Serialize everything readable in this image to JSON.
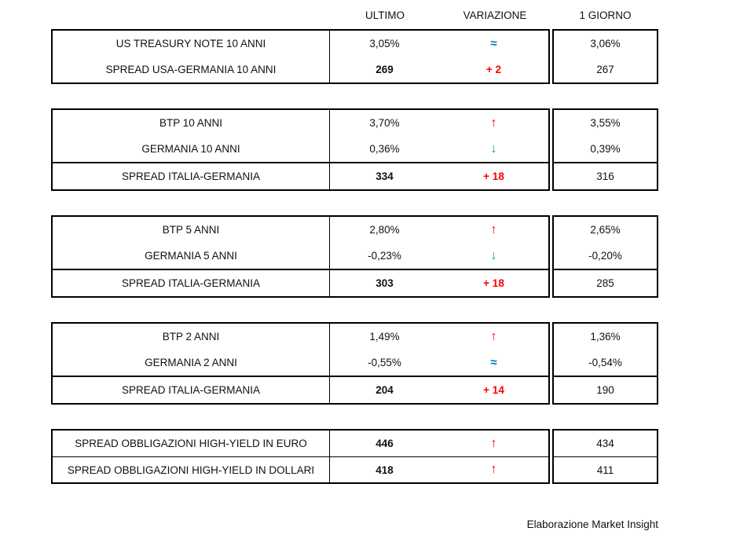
{
  "columns": {
    "ultimo": "ULTIMO",
    "variazione": "VARIAZIONE",
    "giorno": "1 GIORNO"
  },
  "footer": "Elaborazione Market Insight",
  "colors": {
    "up": "#ff0000",
    "down": "#00b050",
    "flat": "#0070c0",
    "positive_change": "#ff0000"
  },
  "chart_data": {
    "type": "table",
    "columns": [
      "",
      "ULTIMO",
      "VARIAZIONE",
      "1 GIORNO"
    ],
    "legend": {
      "up_arrow": "rise (red)",
      "down_arrow": "fall (green)",
      "approx": "unchanged (blue)"
    },
    "blocks": [
      {
        "name": "us-treasury-10y",
        "rows": [
          {
            "label": "US TREASURY NOTE 10 ANNI",
            "ultimo": "3,05%",
            "variazione": "≈",
            "trend": "flat",
            "giorno": "3,06%",
            "bold": false
          },
          {
            "label": "SPREAD USA-GERMANIA 10 ANNI",
            "ultimo": "269",
            "variazione": "+ 2",
            "trend": "positive",
            "giorno": "267",
            "bold": true
          }
        ]
      },
      {
        "name": "btp-10-anni",
        "rows": [
          {
            "label": "BTP 10 ANNI",
            "ultimo": "3,70%",
            "variazione": "↑",
            "trend": "up",
            "giorno": "3,55%",
            "bold": false
          },
          {
            "label": "GERMANIA 10 ANNI",
            "ultimo": "0,36%",
            "variazione": "↓",
            "trend": "down",
            "giorno": "0,39%",
            "bold": false
          },
          {
            "label": "SPREAD ITALIA-GERMANIA",
            "ultimo": "334",
            "variazione": "+ 18",
            "trend": "positive",
            "giorno": "316",
            "bold": true
          }
        ]
      },
      {
        "name": "btp-5-anni",
        "rows": [
          {
            "label": "BTP 5 ANNI",
            "ultimo": "2,80%",
            "variazione": "↑",
            "trend": "up",
            "giorno": "2,65%",
            "bold": false
          },
          {
            "label": "GERMANIA 5 ANNI",
            "ultimo": "-0,23%",
            "variazione": "↓",
            "trend": "down",
            "giorno": "-0,20%",
            "bold": false
          },
          {
            "label": "SPREAD ITALIA-GERMANIA",
            "ultimo": "303",
            "variazione": "+ 18",
            "trend": "positive",
            "giorno": "285",
            "bold": true
          }
        ]
      },
      {
        "name": "btp-2-anni",
        "rows": [
          {
            "label": "BTP 2 ANNI",
            "ultimo": "1,49%",
            "variazione": "↑",
            "trend": "up",
            "giorno": "1,36%",
            "bold": false
          },
          {
            "label": "GERMANIA 2 ANNI",
            "ultimo": "-0,55%",
            "variazione": "≈",
            "trend": "flat",
            "giorno": "-0,54%",
            "bold": false
          },
          {
            "label": "SPREAD ITALIA-GERMANIA",
            "ultimo": "204",
            "variazione": "+ 14",
            "trend": "positive",
            "giorno": "190",
            "bold": true
          }
        ]
      },
      {
        "name": "high-yield",
        "rows": [
          {
            "label": "SPREAD OBBLIGAZIONI HIGH-YIELD IN EURO",
            "ultimo": "446",
            "variazione": "↑",
            "trend": "up",
            "giorno": "434",
            "bold": true
          },
          {
            "label": "SPREAD OBBLIGAZIONI HIGH-YIELD IN DOLLARI",
            "ultimo": "418",
            "variazione": "↑",
            "trend": "up",
            "giorno": "411",
            "bold": true
          }
        ]
      }
    ]
  }
}
